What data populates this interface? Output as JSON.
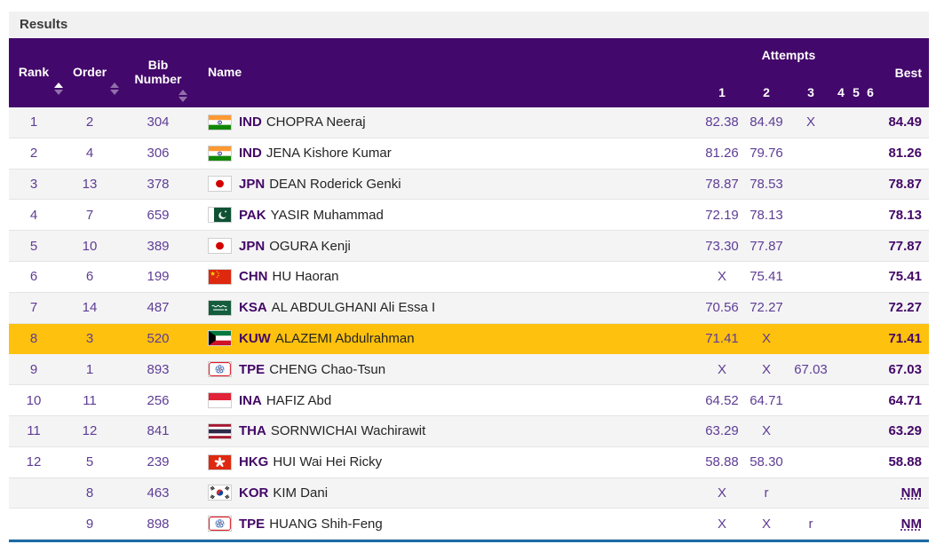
{
  "page": {
    "title": "Results"
  },
  "table": {
    "headers": {
      "rank": "Rank",
      "order": "Order",
      "bib": "Bib Number",
      "name": "Name",
      "attempts": "Attempts",
      "attempt_numbers": [
        "1",
        "2",
        "3",
        "4",
        "5",
        "6"
      ],
      "best": "Best"
    },
    "sort": {
      "active_column": "rank",
      "direction": "ascending"
    },
    "rows": [
      {
        "rank": "1",
        "order": "2",
        "bib": "304",
        "noc": "IND",
        "name": "CHOPRA Neeraj",
        "attempts": [
          "82.38",
          "84.49",
          "X",
          "",
          "",
          ""
        ],
        "best": "84.49",
        "highlight": false,
        "no_mark": false
      },
      {
        "rank": "2",
        "order": "4",
        "bib": "306",
        "noc": "IND",
        "name": "JENA Kishore Kumar",
        "attempts": [
          "81.26",
          "79.76",
          "",
          "",
          "",
          ""
        ],
        "best": "81.26",
        "highlight": false,
        "no_mark": false
      },
      {
        "rank": "3",
        "order": "13",
        "bib": "378",
        "noc": "JPN",
        "name": "DEAN Roderick Genki",
        "attempts": [
          "78.87",
          "78.53",
          "",
          "",
          "",
          ""
        ],
        "best": "78.87",
        "highlight": false,
        "no_mark": false
      },
      {
        "rank": "4",
        "order": "7",
        "bib": "659",
        "noc": "PAK",
        "name": "YASIR Muhammad",
        "attempts": [
          "72.19",
          "78.13",
          "",
          "",
          "",
          ""
        ],
        "best": "78.13",
        "highlight": false,
        "no_mark": false
      },
      {
        "rank": "5",
        "order": "10",
        "bib": "389",
        "noc": "JPN",
        "name": "OGURA Kenji",
        "attempts": [
          "73.30",
          "77.87",
          "",
          "",
          "",
          ""
        ],
        "best": "77.87",
        "highlight": false,
        "no_mark": false
      },
      {
        "rank": "6",
        "order": "6",
        "bib": "199",
        "noc": "CHN",
        "name": "HU Haoran",
        "attempts": [
          "X",
          "75.41",
          "",
          "",
          "",
          ""
        ],
        "best": "75.41",
        "highlight": false,
        "no_mark": false
      },
      {
        "rank": "7",
        "order": "14",
        "bib": "487",
        "noc": "KSA",
        "name": "AL ABDULGHANI Ali Essa I",
        "attempts": [
          "70.56",
          "72.27",
          "",
          "",
          "",
          ""
        ],
        "best": "72.27",
        "highlight": false,
        "no_mark": false
      },
      {
        "rank": "8",
        "order": "3",
        "bib": "520",
        "noc": "KUW",
        "name": "ALAZEMI Abdulrahman",
        "attempts": [
          "71.41",
          "X",
          "",
          "",
          "",
          ""
        ],
        "best": "71.41",
        "highlight": true,
        "no_mark": false
      },
      {
        "rank": "9",
        "order": "1",
        "bib": "893",
        "noc": "TPE",
        "name": "CHENG Chao-Tsun",
        "attempts": [
          "X",
          "X",
          "67.03",
          "",
          "",
          ""
        ],
        "best": "67.03",
        "highlight": false,
        "no_mark": false
      },
      {
        "rank": "10",
        "order": "11",
        "bib": "256",
        "noc": "INA",
        "name": "HAFIZ Abd",
        "attempts": [
          "64.52",
          "64.71",
          "",
          "",
          "",
          ""
        ],
        "best": "64.71",
        "highlight": false,
        "no_mark": false
      },
      {
        "rank": "11",
        "order": "12",
        "bib": "841",
        "noc": "THA",
        "name": "SORNWICHAI Wachirawit",
        "attempts": [
          "63.29",
          "X",
          "",
          "",
          "",
          ""
        ],
        "best": "63.29",
        "highlight": false,
        "no_mark": false
      },
      {
        "rank": "12",
        "order": "5",
        "bib": "239",
        "noc": "HKG",
        "name": "HUI Wai Hei Ricky",
        "attempts": [
          "58.88",
          "58.30",
          "",
          "",
          "",
          ""
        ],
        "best": "58.88",
        "highlight": false,
        "no_mark": false
      },
      {
        "rank": "",
        "order": "8",
        "bib": "463",
        "noc": "KOR",
        "name": "KIM Dani",
        "attempts": [
          "X",
          "r",
          "",
          "",
          "",
          ""
        ],
        "best": "NM",
        "highlight": false,
        "no_mark": true
      },
      {
        "rank": "",
        "order": "9",
        "bib": "898",
        "noc": "TPE",
        "name": "HUANG Shih-Feng",
        "attempts": [
          "X",
          "X",
          "r",
          "",
          "",
          ""
        ],
        "best": "NM",
        "highlight": false,
        "no_mark": true
      }
    ]
  },
  "colors": {
    "header_background": "#43086b",
    "highlight_row": "#fec10d",
    "value_text": "#5e3d94",
    "emphasis_text": "#430766",
    "bottom_border": "#1c6ba5",
    "row_alt_background": "#f4f4f5",
    "results_bar_background": "#f1f1f2"
  }
}
